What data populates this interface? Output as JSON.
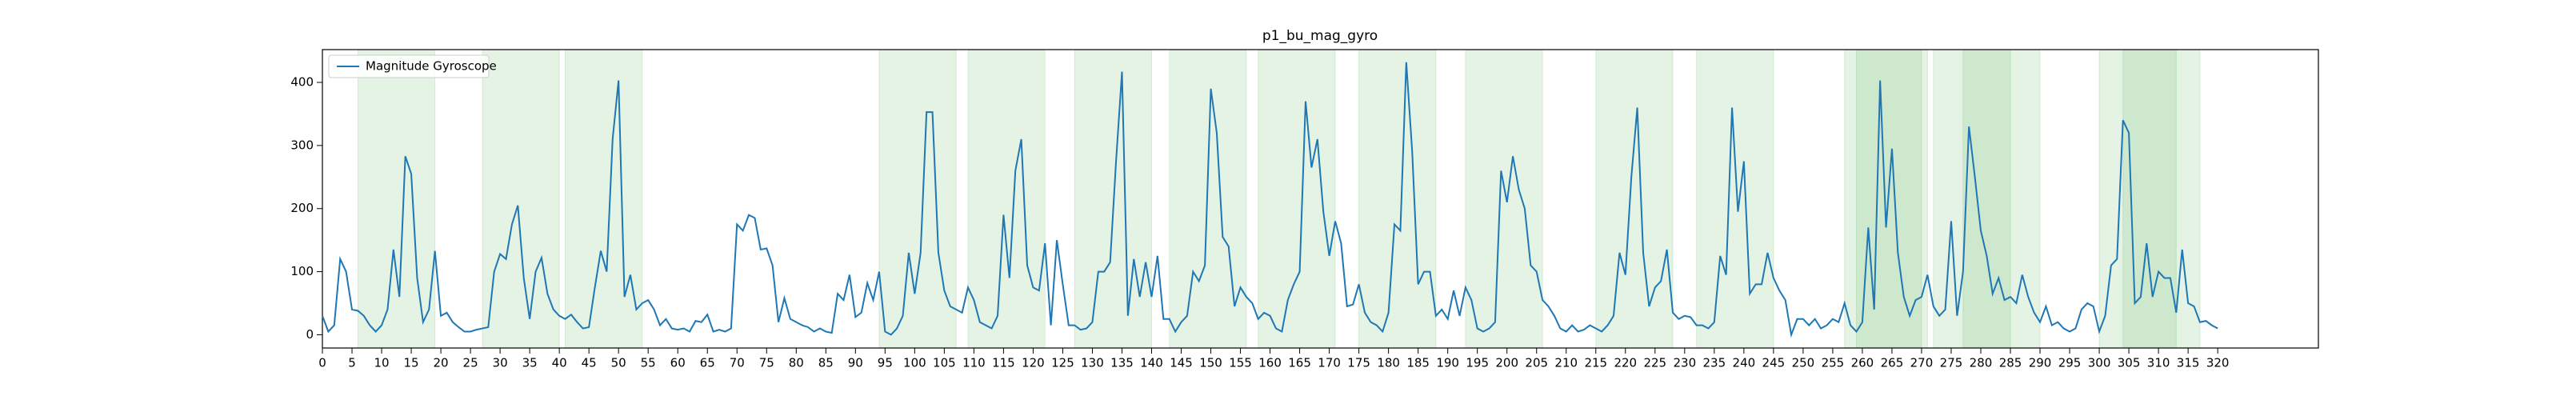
{
  "chart_data": {
    "type": "line",
    "title": "p1_bu_mag_gyro",
    "x": [
      0,
      1,
      2,
      3,
      4,
      5,
      6,
      7,
      8,
      9,
      10,
      11,
      12,
      13,
      14,
      15,
      16,
      17,
      18,
      19,
      20,
      21,
      22,
      23,
      24,
      25,
      26,
      27,
      28,
      29,
      30,
      31,
      32,
      33,
      34,
      35,
      36,
      37,
      38,
      39,
      40,
      41,
      42,
      43,
      44,
      45,
      46,
      47,
      48,
      49,
      50,
      51,
      52,
      53,
      54,
      55,
      56,
      57,
      58,
      59,
      60,
      61,
      62,
      63,
      64,
      65,
      66,
      67,
      68,
      69,
      70,
      71,
      72,
      73,
      74,
      75,
      76,
      77,
      78,
      79,
      80,
      81,
      82,
      83,
      84,
      85,
      86,
      87,
      88,
      89,
      90,
      91,
      92,
      93,
      94,
      95,
      96,
      97,
      98,
      99,
      100,
      101,
      102,
      103,
      104,
      105,
      106,
      107,
      108,
      109,
      110,
      111,
      112,
      113,
      114,
      115,
      116,
      117,
      118,
      119,
      120,
      121,
      122,
      123,
      124,
      125,
      126,
      127,
      128,
      129,
      130,
      131,
      132,
      133,
      134,
      135,
      136,
      137,
      138,
      139,
      140,
      141,
      142,
      143,
      144,
      145,
      146,
      147,
      148,
      149,
      150,
      151,
      152,
      153,
      154,
      155,
      156,
      157,
      158,
      159,
      160,
      161,
      162,
      163,
      164,
      165,
      166,
      167,
      168,
      169,
      170,
      171,
      172,
      173,
      174,
      175,
      176,
      177,
      178,
      179,
      180,
      181,
      182,
      183,
      184,
      185,
      186,
      187,
      188,
      189,
      190,
      191,
      192,
      193,
      194,
      195,
      196,
      197,
      198,
      199,
      200,
      201,
      202,
      203,
      204,
      205,
      206,
      207,
      208,
      209,
      210,
      211,
      212,
      213,
      214,
      215,
      216,
      217,
      218,
      219,
      220,
      221,
      222,
      223,
      224,
      225,
      226,
      227,
      228,
      229,
      230,
      231,
      232,
      233,
      234,
      235,
      236,
      237,
      238,
      239,
      240,
      241,
      242,
      243,
      244,
      245,
      246,
      247,
      248,
      249,
      250,
      251,
      252,
      253,
      254,
      255,
      256,
      257,
      258,
      259,
      260,
      261,
      262,
      263,
      264,
      265,
      266,
      267,
      268,
      269,
      270,
      271,
      272,
      273,
      274,
      275,
      276,
      277,
      278,
      279,
      280,
      281,
      282,
      283,
      284,
      285,
      286,
      287,
      288,
      289,
      290,
      291,
      292,
      293,
      294,
      295,
      296,
      297,
      298,
      299,
      300,
      301,
      302,
      303,
      304,
      305,
      306,
      307,
      308,
      309,
      310,
      311,
      312,
      313,
      314,
      315,
      316,
      317,
      318,
      319,
      320
    ],
    "series": [
      {
        "name": "Magnitude Gyroscope",
        "color": "#1f77b4",
        "values": [
          30,
          5,
          15,
          120,
          100,
          40,
          38,
          30,
          15,
          5,
          15,
          40,
          135,
          60,
          283,
          255,
          90,
          20,
          40,
          133,
          30,
          35,
          20,
          12,
          5,
          5,
          8,
          10,
          12,
          100,
          128,
          120,
          175,
          205,
          90,
          25,
          100,
          122,
          65,
          40,
          30,
          25,
          32,
          20,
          10,
          12,
          75,
          133,
          100,
          310,
          403,
          60,
          95,
          40,
          50,
          55,
          40,
          15,
          25,
          10,
          8,
          10,
          5,
          22,
          20,
          32,
          5,
          8,
          5,
          10,
          175,
          165,
          190,
          185,
          135,
          137,
          110,
          20,
          58,
          25,
          20,
          15,
          12,
          5,
          10,
          5,
          3,
          65,
          55,
          95,
          28,
          35,
          82,
          55,
          100,
          5,
          0,
          10,
          30,
          130,
          65,
          130,
          353,
          353,
          130,
          70,
          45,
          40,
          35,
          75,
          55,
          20,
          15,
          10,
          30,
          190,
          90,
          260,
          310,
          110,
          75,
          70,
          145,
          15,
          150,
          80,
          15,
          15,
          8,
          10,
          20,
          100,
          100,
          115,
          275,
          417,
          30,
          120,
          60,
          115,
          60,
          125,
          25,
          25,
          5,
          20,
          30,
          100,
          85,
          110,
          390,
          320,
          155,
          140,
          45,
          75,
          60,
          50,
          25,
          35,
          30,
          10,
          5,
          55,
          80,
          100,
          370,
          265,
          310,
          195,
          125,
          180,
          145,
          45,
          48,
          80,
          35,
          20,
          15,
          5,
          35,
          175,
          165,
          432,
          290,
          80,
          100,
          100,
          30,
          40,
          25,
          70,
          30,
          75,
          55,
          10,
          5,
          10,
          20,
          260,
          210,
          283,
          230,
          200,
          110,
          100,
          55,
          45,
          30,
          10,
          5,
          15,
          5,
          8,
          15,
          10,
          5,
          15,
          30,
          130,
          95,
          250,
          360,
          130,
          45,
          75,
          85,
          135,
          35,
          25,
          30,
          28,
          15,
          15,
          10,
          20,
          125,
          95,
          360,
          195,
          275,
          65,
          80,
          80,
          130,
          90,
          70,
          55,
          0,
          25,
          25,
          15,
          25,
          10,
          15,
          25,
          20,
          50,
          15,
          5,
          20,
          170,
          40,
          403,
          170,
          295,
          130,
          60,
          30,
          55,
          60,
          95,
          45,
          30,
          40,
          180,
          30,
          100,
          330,
          250,
          165,
          125,
          65,
          90,
          55,
          60,
          50,
          95,
          60,
          35,
          20,
          45,
          15,
          20,
          10,
          5,
          10,
          40,
          50,
          45,
          5,
          30,
          110,
          120,
          340,
          320,
          50,
          60,
          145,
          60,
          100,
          90,
          90,
          35,
          135,
          50,
          45,
          20,
          22,
          15,
          10
        ]
      }
    ],
    "spans": [
      [
        6,
        19
      ],
      [
        27,
        40
      ],
      [
        41,
        54
      ],
      [
        94,
        107
      ],
      [
        109,
        122
      ],
      [
        127,
        140
      ],
      [
        143,
        156
      ],
      [
        158,
        171
      ],
      [
        175,
        188
      ],
      [
        193,
        206
      ],
      [
        215,
        228
      ],
      [
        232,
        245
      ],
      [
        257,
        271
      ],
      [
        259,
        270
      ],
      [
        272,
        285
      ],
      [
        277,
        290
      ],
      [
        300,
        313
      ],
      [
        304,
        317
      ]
    ],
    "span_color": "#2ca02c",
    "xlim": [
      0,
      337
    ],
    "ylim": [
      -21,
      452
    ],
    "xticks": [
      0,
      5,
      10,
      15,
      20,
      25,
      30,
      35,
      40,
      45,
      50,
      55,
      60,
      65,
      70,
      75,
      80,
      85,
      90,
      95,
      100,
      105,
      110,
      115,
      120,
      125,
      130,
      135,
      140,
      145,
      150,
      155,
      160,
      165,
      170,
      175,
      180,
      185,
      190,
      195,
      200,
      205,
      210,
      215,
      220,
      225,
      230,
      235,
      240,
      245,
      250,
      255,
      260,
      265,
      270,
      275,
      280,
      285,
      290,
      295,
      300,
      305,
      310,
      315,
      320
    ],
    "yticks": [
      0,
      100,
      200,
      300,
      400
    ],
    "legend": "upper left"
  }
}
